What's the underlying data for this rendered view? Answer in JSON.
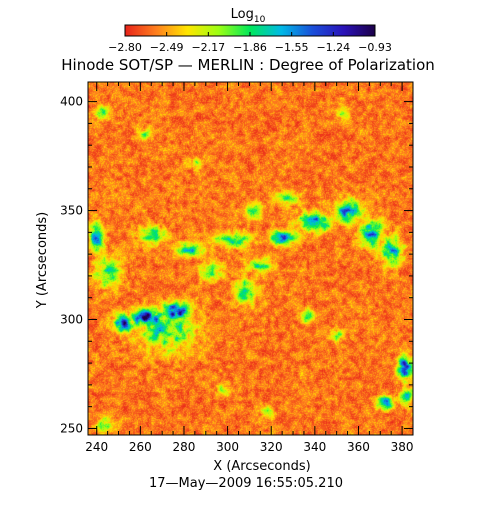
{
  "colorbar": {
    "label": "Log",
    "label_subscript": "10",
    "tick_labels": [
      "−2.80",
      "−2.49",
      "−2.17",
      "−1.86",
      "−1.55",
      "−1.24",
      "−0.93"
    ],
    "range": [
      -2.8,
      -0.93
    ],
    "colormap": [
      "#e8231a",
      "#ff7f1e",
      "#ffe600",
      "#9cff14",
      "#00e85a",
      "#00b9e6",
      "#1a4fd9",
      "#2a12b8",
      "#1c0048"
    ]
  },
  "title": "Hinode SOT/SP — MERLIN : Degree of Polarization",
  "footer": "17—May—2009  16:55:05.210",
  "chart_data": {
    "type": "heatmap",
    "title": "Hinode SOT/SP — MERLIN : Degree of Polarization",
    "xlabel": "X (Arcseconds)",
    "ylabel": "Y (Arcseconds)",
    "xlim": [
      236,
      385
    ],
    "ylim": [
      247,
      409
    ],
    "x_ticks": [
      "240",
      "260",
      "280",
      "300",
      "320",
      "340",
      "360",
      "380"
    ],
    "y_ticks": [
      "250",
      "300",
      "350",
      "400"
    ],
    "x_tick_values": [
      240,
      260,
      280,
      300,
      320,
      340,
      360,
      380
    ],
    "y_tick_values": [
      250,
      300,
      350,
      400
    ],
    "value_scale": "log10",
    "background_level": -2.8,
    "features": [
      {
        "kind": "strong_polarization_patch",
        "x": 263,
        "y": 301,
        "sx": 7,
        "sy": 4,
        "level": -1.0
      },
      {
        "kind": "strong_polarization_patch",
        "x": 276,
        "y": 304,
        "sx": 6,
        "sy": 4,
        "level": -1.1
      },
      {
        "kind": "strong_polarization_patch",
        "x": 252,
        "y": 298,
        "sx": 4,
        "sy": 4,
        "level": -1.1
      },
      {
        "kind": "strong_polarization_patch",
        "x": 272,
        "y": 295,
        "sx": 12,
        "sy": 9,
        "level": -1.9
      },
      {
        "kind": "strong_polarization_patch",
        "x": 245,
        "y": 322,
        "sx": 6,
        "sy": 7,
        "level": -2.0
      },
      {
        "kind": "network_lane",
        "x": 340,
        "y": 345,
        "sx": 7,
        "sy": 4,
        "level": -1.4
      },
      {
        "kind": "network_lane",
        "x": 325,
        "y": 338,
        "sx": 6,
        "sy": 3,
        "level": -1.5
      },
      {
        "kind": "network_lane",
        "x": 302,
        "y": 337,
        "sx": 8,
        "sy": 3,
        "level": -1.8
      },
      {
        "kind": "network_lane",
        "x": 282,
        "y": 332,
        "sx": 7,
        "sy": 3,
        "level": -1.8
      },
      {
        "kind": "network_lane",
        "x": 355,
        "y": 350,
        "sx": 6,
        "sy": 5,
        "level": -1.6
      },
      {
        "kind": "network_lane",
        "x": 366,
        "y": 340,
        "sx": 5,
        "sy": 6,
        "level": -1.6
      },
      {
        "kind": "network_lane",
        "x": 375,
        "y": 332,
        "sx": 5,
        "sy": 6,
        "level": -1.7
      },
      {
        "kind": "network_lane",
        "x": 315,
        "y": 325,
        "sx": 6,
        "sy": 3,
        "level": -2.0
      },
      {
        "kind": "network_lane",
        "x": 265,
        "y": 339,
        "sx": 6,
        "sy": 4,
        "level": -2.0
      },
      {
        "kind": "network_lane",
        "x": 240,
        "y": 338,
        "sx": 3,
        "sy": 6,
        "level": -1.5
      },
      {
        "kind": "network_lane",
        "x": 308,
        "y": 313,
        "sx": 5,
        "sy": 6,
        "level": -2.0
      },
      {
        "kind": "network_lane",
        "x": 292,
        "y": 322,
        "sx": 5,
        "sy": 4,
        "level": -2.1
      },
      {
        "kind": "network_lane",
        "x": 312,
        "y": 350,
        "sx": 4,
        "sy": 3,
        "level": -2.0
      },
      {
        "kind": "network_lane",
        "x": 327,
        "y": 356,
        "sx": 5,
        "sy": 3,
        "level": -2.1
      },
      {
        "kind": "network_lane",
        "x": 381,
        "y": 278,
        "sx": 3,
        "sy": 5,
        "level": -1.2
      },
      {
        "kind": "network_lane",
        "x": 372,
        "y": 262,
        "sx": 4,
        "sy": 3,
        "level": -1.6
      },
      {
        "kind": "network_lane",
        "x": 382,
        "y": 265,
        "sx": 3,
        "sy": 4,
        "level": -1.9
      },
      {
        "kind": "network_lane",
        "x": 336,
        "y": 302,
        "sx": 3,
        "sy": 3,
        "level": -2.0
      },
      {
        "kind": "network_lane",
        "x": 350,
        "y": 293,
        "sx": 3,
        "sy": 3,
        "level": -2.2
      },
      {
        "kind": "network_lane",
        "x": 244,
        "y": 252,
        "sx": 4,
        "sy": 3,
        "level": -2.0
      },
      {
        "kind": "network_lane",
        "x": 262,
        "y": 385,
        "sx": 3,
        "sy": 3,
        "level": -2.2
      },
      {
        "kind": "network_lane",
        "x": 242,
        "y": 395,
        "sx": 3,
        "sy": 3,
        "level": -2.1
      },
      {
        "kind": "network_lane",
        "x": 285,
        "y": 372,
        "sx": 3,
        "sy": 3,
        "level": -2.3
      },
      {
        "kind": "network_lane",
        "x": 353,
        "y": 395,
        "sx": 3,
        "sy": 3,
        "level": -2.3
      },
      {
        "kind": "network_lane",
        "x": 298,
        "y": 268,
        "sx": 3,
        "sy": 3,
        "level": -2.3
      },
      {
        "kind": "network_lane",
        "x": 318,
        "y": 258,
        "sx": 3,
        "sy": 3,
        "level": -2.3
      }
    ]
  }
}
